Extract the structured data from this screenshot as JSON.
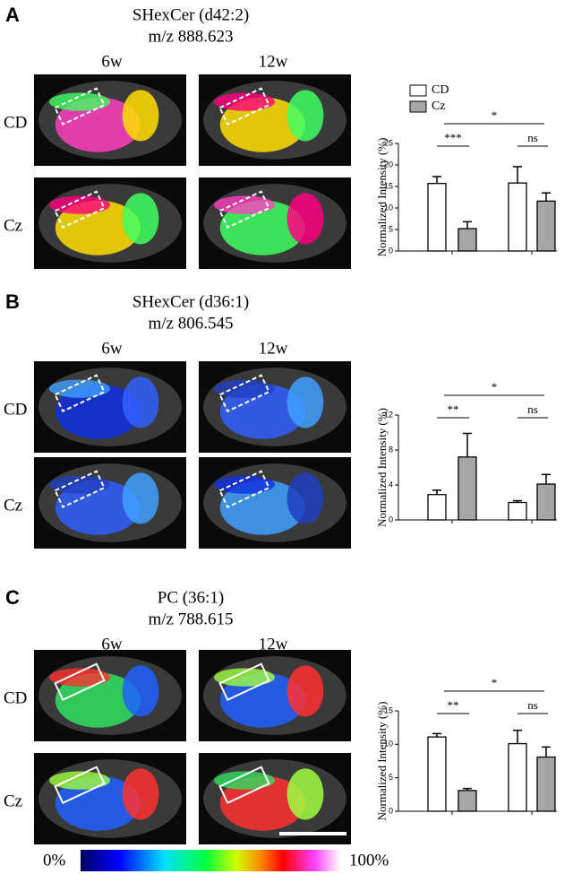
{
  "panels": [
    {
      "letter": "A",
      "title": "SHexCer (d42:2)",
      "mz": "m/z 888.623",
      "cols": [
        "6w",
        "12w"
      ],
      "rows": [
        "CD",
        "Cz"
      ]
    },
    {
      "letter": "B",
      "title": "SHexCer (d36:1)",
      "mz": "m/z 806.545",
      "cols": [
        "6w",
        "12w"
      ],
      "rows": [
        "CD",
        "Cz"
      ]
    },
    {
      "letter": "C",
      "title": "PC (36:1)",
      "mz": "m/z 788.615",
      "cols": [
        "6w",
        "12w"
      ],
      "rows": [
        "CD",
        "Cz"
      ]
    }
  ],
  "colorbar": {
    "min": "0%",
    "max": "100%"
  },
  "chart_data": [
    {
      "type": "bar",
      "ylabel": "Normalized Intensity (%)",
      "ylim": [
        0,
        25
      ],
      "yticks": [
        0,
        5,
        10,
        15,
        20,
        25
      ],
      "series": [
        {
          "name": "CD",
          "color": "#ffffff",
          "values": [
            15.7,
            15.8
          ],
          "errors": [
            1.6,
            3.8
          ]
        },
        {
          "name": "Cz",
          "color": "#a6a6a6",
          "values": [
            5.2,
            11.6
          ],
          "errors": [
            1.6,
            1.9
          ]
        }
      ],
      "annotations": [
        "***",
        "ns",
        "*"
      ]
    },
    {
      "type": "bar",
      "ylabel": "Normalized Intensity (%)",
      "ylim": [
        0,
        12
      ],
      "yticks": [
        0,
        4,
        8,
        12
      ],
      "series": [
        {
          "color": "#ffffff",
          "values": [
            2.9,
            2.0
          ],
          "errors": [
            0.5,
            0.2
          ]
        },
        {
          "color": "#a6a6a6",
          "values": [
            7.2,
            4.1
          ],
          "errors": [
            2.7,
            1.1
          ]
        }
      ],
      "annotations": [
        "**",
        "ns",
        "*"
      ]
    },
    {
      "type": "bar",
      "ylabel": "Normalized Intensity (%)",
      "ylim": [
        0,
        15
      ],
      "yticks": [
        0,
        5,
        10,
        15
      ],
      "series": [
        {
          "color": "#ffffff",
          "values": [
            11.1,
            10.1
          ],
          "errors": [
            0.5,
            2.0
          ]
        },
        {
          "color": "#a6a6a6",
          "values": [
            3.1,
            8.1
          ],
          "errors": [
            0.3,
            1.5
          ]
        }
      ],
      "annotations": [
        "**",
        "ns",
        "*"
      ]
    }
  ]
}
